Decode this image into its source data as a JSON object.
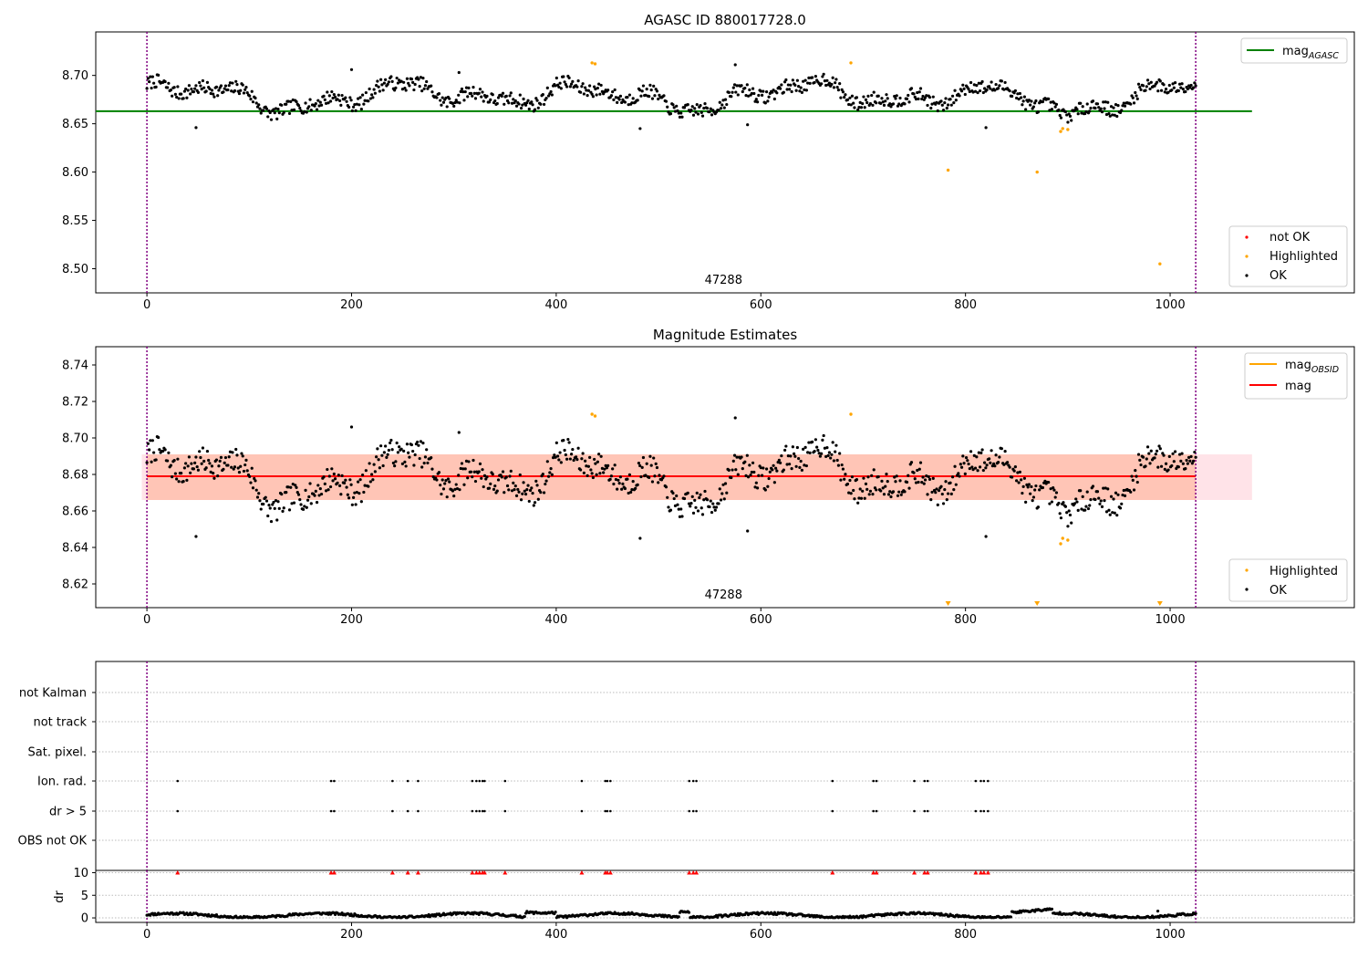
{
  "colors": {
    "ok": "#000000",
    "highlighted": "#ffa500",
    "not_ok": "#ff0000",
    "agasc": "#008000",
    "mag": "#ff0000",
    "obs_line": "#800080",
    "band1": "#ffc0cb",
    "band2": "#ffa07a"
  },
  "chart_data": [
    {
      "type": "scatter",
      "title": "AGASC ID 880017728.0",
      "xlim": [
        -50,
        1180
      ],
      "ylim": [
        8.475,
        8.745
      ],
      "xticks": [
        0,
        200,
        400,
        600,
        800,
        1000
      ],
      "yticks": [
        8.5,
        8.55,
        8.6,
        8.65,
        8.7
      ],
      "obsid_label": "47288",
      "obsid_label_x": 510,
      "obs_boundaries_x": [
        0,
        1025
      ],
      "hline": {
        "name": "mag_AGASC",
        "y": 8.663,
        "x_range": [
          -50,
          1080
        ]
      },
      "legend_top": {
        "position": "top-right",
        "entries": [
          {
            "base": "mag",
            "sub": "AGASC",
            "kind": "line",
            "color_key": "agasc"
          }
        ]
      },
      "legend_bottom": {
        "position": "bottom-right",
        "entries": [
          {
            "label": "not OK",
            "color_key": "not_ok"
          },
          {
            "label": "Highlighted",
            "color_key": "highlighted"
          },
          {
            "label": "OK",
            "color_key": "ok"
          }
        ]
      },
      "series": [
        {
          "name": "OK",
          "color_key": "ok",
          "generated": {
            "x_range": [
              0,
              1025
            ],
            "n": 920,
            "seed": 7
          }
        },
        {
          "name": "Highlighted",
          "color_key": "highlighted",
          "points": [
            [
              435,
              8.713
            ],
            [
              438,
              8.712
            ],
            [
              688,
              8.713
            ],
            [
              783,
              8.602
            ],
            [
              870,
              8.6
            ],
            [
              893,
              8.642
            ],
            [
              895,
              8.645
            ],
            [
              900,
              8.644
            ],
            [
              990,
              8.505
            ]
          ]
        }
      ]
    },
    {
      "type": "scatter",
      "title": "Magnitude Estimates",
      "xlim": [
        -50,
        1180
      ],
      "ylim": [
        8.607,
        8.75
      ],
      "xticks": [
        0,
        200,
        400,
        600,
        800,
        1000
      ],
      "yticks": [
        8.62,
        8.64,
        8.66,
        8.68,
        8.7,
        8.72,
        8.74
      ],
      "obsid_label": "47288",
      "obsid_label_x": 510,
      "obs_boundaries_x": [
        0,
        1025
      ],
      "mag_line": {
        "y": 8.679,
        "x_range": [
          0,
          1025
        ]
      },
      "bands": [
        {
          "y": [
            8.666,
            8.691
          ],
          "x_range": [
            -5,
            1080
          ],
          "color_key": "band1"
        },
        {
          "y": [
            8.666,
            8.691
          ],
          "x_range": [
            0,
            1025
          ],
          "color_key": "band2"
        }
      ],
      "legend_top": {
        "position": "top-right",
        "entries": [
          {
            "base": "mag",
            "sub": "OBSID",
            "kind": "line",
            "color_key": "highlighted"
          },
          {
            "base": "mag",
            "sub": "",
            "kind": "line",
            "color_key": "mag"
          }
        ]
      },
      "legend_bottom": {
        "position": "bottom-right",
        "entries": [
          {
            "label": "Highlighted",
            "color_key": "highlighted"
          },
          {
            "label": "OK",
            "color_key": "ok"
          }
        ]
      },
      "series": [
        {
          "name": "OK",
          "color_key": "ok",
          "generated": {
            "x_range": [
              0,
              1025
            ],
            "n": 920,
            "seed": 7
          }
        },
        {
          "name": "Highlighted",
          "color_key": "highlighted",
          "points": [
            [
              435,
              8.713
            ],
            [
              438,
              8.712
            ],
            [
              688,
              8.713
            ],
            [
              893,
              8.642
            ],
            [
              895,
              8.645
            ],
            [
              900,
              8.644
            ]
          ]
        },
        {
          "name": "Highlighted-clipped",
          "color_key": "highlighted",
          "marker": "triangle-down",
          "points": [
            [
              783,
              8.608
            ],
            [
              870,
              8.608
            ],
            [
              990,
              8.608
            ]
          ]
        }
      ]
    },
    {
      "type": "flags",
      "xlim": [
        -50,
        1180
      ],
      "categories": [
        "not Kalman",
        "not track",
        "Sat. pixel.",
        "Ion. rad.",
        "dr > 5",
        "OBS not OK"
      ],
      "obs_boundaries_x": [
        0,
        1025
      ],
      "flag_x": [
        30,
        180,
        183,
        240,
        255,
        265,
        318,
        322,
        325,
        328,
        330,
        350,
        425,
        448,
        450,
        453,
        530,
        534,
        537,
        670,
        710,
        713,
        750,
        760,
        763,
        810,
        815,
        818,
        822
      ],
      "flag_rows": [
        "Ion. rad.",
        "dr > 5"
      ]
    },
    {
      "type": "scatter",
      "ylabel": "dr",
      "xlim": [
        -50,
        1180
      ],
      "ylim": [
        -1,
        10.5
      ],
      "xticks": [
        0,
        200,
        400,
        600,
        800,
        1000
      ],
      "yticks": [
        0,
        5,
        10
      ],
      "obs_boundaries_x": [
        0,
        1025
      ],
      "clipped_markers_x": [
        30,
        180,
        183,
        240,
        255,
        265,
        318,
        322,
        325,
        328,
        330,
        350,
        425,
        448,
        450,
        453,
        530,
        534,
        537,
        670,
        710,
        713,
        750,
        760,
        763,
        810,
        815,
        818,
        822
      ],
      "clipped_value": 10,
      "series": [
        {
          "name": "dr",
          "color_key": "ok",
          "generated": {
            "x_range": [
              0,
              1025
            ],
            "n": 920,
            "seed": 11
          }
        }
      ]
    }
  ]
}
